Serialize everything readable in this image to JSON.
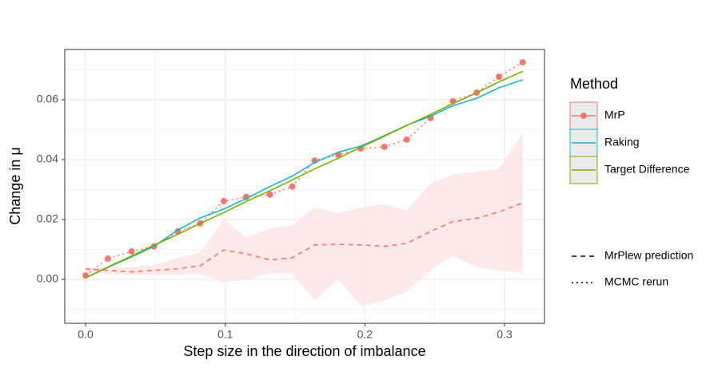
{
  "chart_data": {
    "type": "line",
    "x_label": "Step size in the direction of imbalance",
    "y_label": "Change in μ",
    "legend_title": "Method",
    "x": [
      0,
      0.016,
      0.033,
      0.049,
      0.066,
      0.082,
      0.099,
      0.115,
      0.132,
      0.148,
      0.164,
      0.181,
      0.197,
      0.214,
      0.23,
      0.247,
      0.263,
      0.28,
      0.296,
      0.313
    ],
    "series": [
      {
        "name": "MrP",
        "color": "#F8766D",
        "points": true,
        "dash": "dotted",
        "values": [
          0.0013,
          0.0069,
          0.0093,
          0.011,
          0.016,
          0.0187,
          0.0261,
          0.0275,
          0.0283,
          0.031,
          0.0397,
          0.0416,
          0.0437,
          0.0443,
          0.0467,
          0.0539,
          0.0595,
          0.0624,
          0.0677,
          0.0725
        ]
      },
      {
        "name": "Raking",
        "color": "#1FB2C8",
        "values": [
          0.0005,
          0.004,
          0.0075,
          0.011,
          0.0165,
          0.0205,
          0.0235,
          0.027,
          0.031,
          0.0345,
          0.039,
          0.0425,
          0.0445,
          0.048,
          0.0515,
          0.0545,
          0.058,
          0.0605,
          0.064,
          0.0667
        ]
      },
      {
        "name": "Target Difference",
        "color": "#7CAE00",
        "values": [
          0.0005,
          0.0041,
          0.0078,
          0.0114,
          0.015,
          0.0187,
          0.0223,
          0.026,
          0.0296,
          0.0332,
          0.0369,
          0.0405,
          0.0441,
          0.0478,
          0.0514,
          0.0551,
          0.0587,
          0.0623,
          0.066,
          0.0695
        ]
      }
    ],
    "prediction": {
      "color": "#F8766D",
      "band_color": "#FDE3E1",
      "values": [
        0.0035,
        0.003,
        0.0025,
        0.003,
        0.0035,
        0.0045,
        0.0098,
        0.0085,
        0.0065,
        0.0072,
        0.0115,
        0.0117,
        0.0115,
        0.011,
        0.012,
        0.016,
        0.0193,
        0.0204,
        0.0225,
        0.0255
      ],
      "lower": [
        0.0025,
        0.002,
        0.0015,
        0.0015,
        0.0015,
        0.002,
        -0.001,
        0.0,
        0.002,
        0.002,
        -0.007,
        0.0,
        -0.009,
        -0.007,
        -0.004,
        0.003,
        0.008,
        0.004,
        0.003,
        0.002
      ],
      "upper": [
        0.004,
        0.004,
        0.004,
        0.005,
        0.007,
        0.009,
        0.02,
        0.014,
        0.017,
        0.018,
        0.024,
        0.022,
        0.024,
        0.025,
        0.023,
        0.032,
        0.035,
        0.036,
        0.037,
        0.049
      ]
    },
    "linetypes": [
      {
        "name": "MrPlew prediction",
        "dash": "dashed"
      },
      {
        "name": "MCMC rerun",
        "dash": "dotted"
      }
    ],
    "xlim": [
      -0.0149,
      0.3286
    ],
    "ylim": [
      -0.0147,
      0.0768
    ],
    "xticks": [
      {
        "value": 0,
        "label": "0.0"
      },
      0.1,
      0.2,
      0.3
    ],
    "yticks": [
      {
        "value": 0,
        "label": "0.00"
      },
      {
        "value": 0.02,
        "label": "0.02"
      },
      {
        "value": 0.04,
        "label": "0.04"
      },
      {
        "value": 0.06,
        "label": "0.06"
      }
    ],
    "grid": true
  }
}
